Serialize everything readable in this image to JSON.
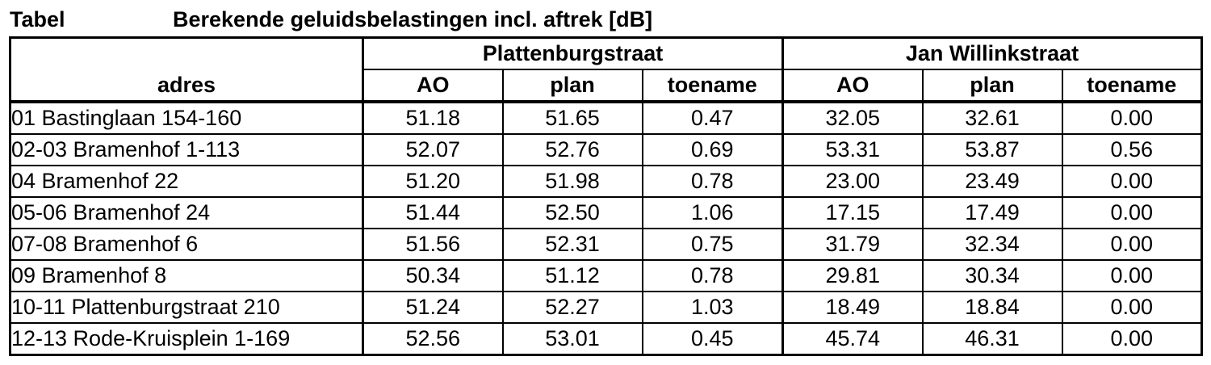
{
  "caption": {
    "label": "Tabel",
    "title": "Berekende geluidsbelastingen incl. aftrek [dB]"
  },
  "table": {
    "row_header": "adres",
    "groups": [
      "Plattenburgstraat",
      "Jan Willinkstraat"
    ],
    "subheaders": [
      "AO",
      "plan",
      "toename"
    ],
    "rows": [
      {
        "adres": "01 Bastinglaan 154-160",
        "values": [
          "51.18",
          "51.65",
          "0.47",
          "32.05",
          "32.61",
          "0.00"
        ]
      },
      {
        "adres": "02-03 Bramenhof 1-113",
        "values": [
          "52.07",
          "52.76",
          "0.69",
          "53.31",
          "53.87",
          "0.56"
        ]
      },
      {
        "adres": "04 Bramenhof 22",
        "values": [
          "51.20",
          "51.98",
          "0.78",
          "23.00",
          "23.49",
          "0.00"
        ]
      },
      {
        "adres": "05-06 Bramenhof 24",
        "values": [
          "51.44",
          "52.50",
          "1.06",
          "17.15",
          "17.49",
          "0.00"
        ]
      },
      {
        "adres": "07-08 Bramenhof 6",
        "values": [
          "51.56",
          "52.31",
          "0.75",
          "31.79",
          "32.34",
          "0.00"
        ]
      },
      {
        "adres": "09 Bramenhof 8",
        "values": [
          "50.34",
          "51.12",
          "0.78",
          "29.81",
          "30.34",
          "0.00"
        ]
      },
      {
        "adres": "10-11 Plattenburgstraat 210",
        "values": [
          "51.24",
          "52.27",
          "1.03",
          "18.49",
          "18.84",
          "0.00"
        ]
      },
      {
        "adres": "12-13 Rode-Kruisplein 1-169",
        "values": [
          "52.56",
          "53.01",
          "0.45",
          "45.74",
          "46.31",
          "0.00"
        ]
      }
    ]
  }
}
